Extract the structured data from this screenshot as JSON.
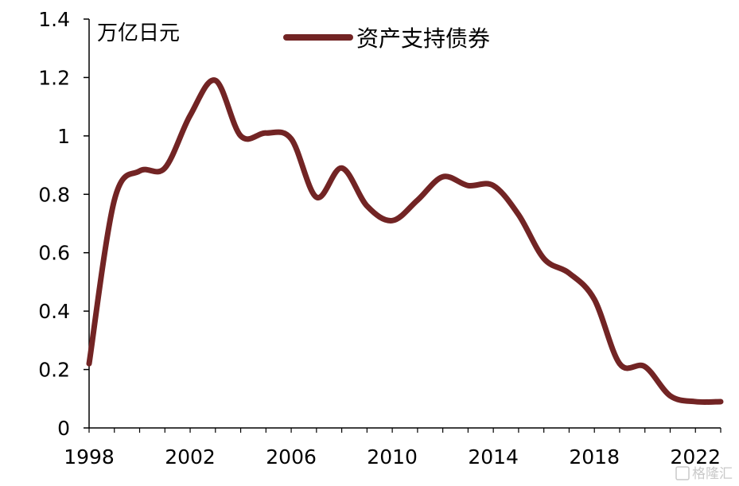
{
  "chart_data": {
    "type": "line",
    "unit_label": "万亿日元",
    "xlabel": "",
    "ylabel": "",
    "x": [
      1998,
      1999,
      2000,
      2001,
      2002,
      2003,
      2004,
      2005,
      2006,
      2007,
      2008,
      2009,
      2010,
      2011,
      2012,
      2013,
      2014,
      2015,
      2016,
      2017,
      2018,
      2019,
      2020,
      2021,
      2022,
      2023
    ],
    "xlim": [
      1998,
      2023
    ],
    "x_ticks": [
      1998,
      2002,
      2006,
      2010,
      2014,
      2018,
      2022
    ],
    "x_tick_labels": [
      "1998",
      "2002",
      "2006",
      "2010",
      "2014",
      "2018",
      "2022"
    ],
    "ylim": [
      0,
      1.4
    ],
    "y_ticks": [
      0,
      0.2,
      0.4,
      0.6,
      0.8,
      1,
      1.2,
      1.4
    ],
    "y_tick_labels": [
      "0",
      "0.2",
      "0.4",
      "0.6",
      "0.8",
      "1",
      "1.2",
      "1.4"
    ],
    "series": [
      {
        "name": "资产支持债券",
        "color": "#722424",
        "values": [
          0.22,
          0.78,
          0.88,
          0.89,
          1.07,
          1.19,
          1.0,
          1.01,
          0.99,
          0.79,
          0.89,
          0.76,
          0.71,
          0.78,
          0.86,
          0.83,
          0.83,
          0.73,
          0.58,
          0.53,
          0.44,
          0.22,
          0.21,
          0.11,
          0.09,
          0.09
        ]
      }
    ],
    "legend_position": "top",
    "grid": false
  },
  "watermark": "格隆汇"
}
